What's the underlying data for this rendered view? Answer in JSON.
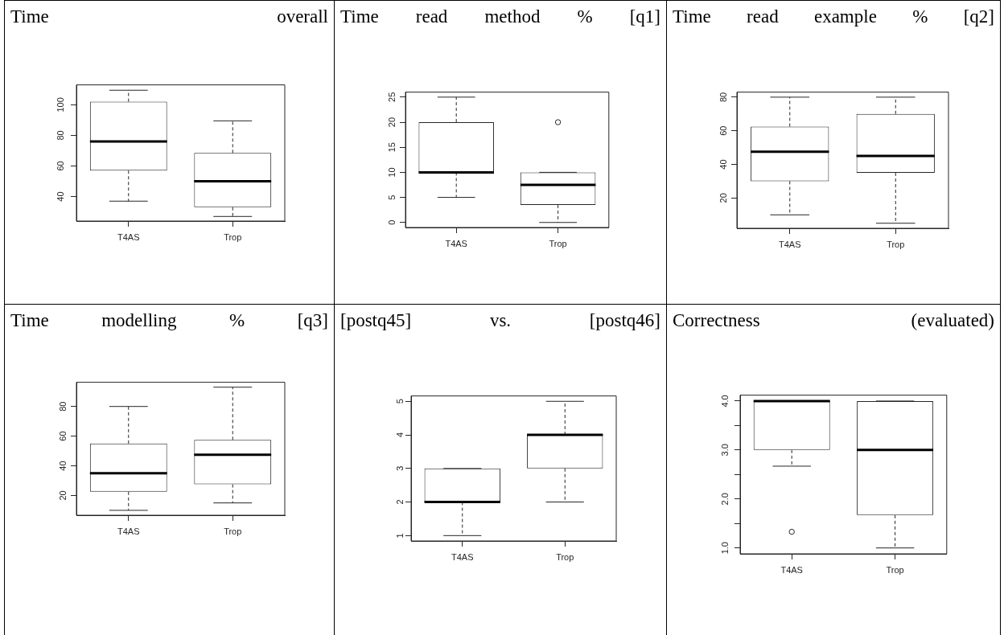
{
  "chart_data": [
    {
      "type": "box",
      "title": "Time overall",
      "categories": [
        "T4AS",
        "Trop"
      ],
      "boxes": [
        {
          "low": 37,
          "q1": 57,
          "median": 76,
          "q3": 102,
          "high": 109.5
        },
        {
          "low": 27,
          "q1": 33,
          "median": 50,
          "q3": 68.5,
          "high": 89.5
        }
      ],
      "ylim": [
        24,
        113
      ],
      "yticks": [
        40,
        60,
        80,
        100
      ]
    },
    {
      "type": "box",
      "title": "Time read method % [q1]",
      "categories": [
        "T4AS",
        "Trop"
      ],
      "boxes": [
        {
          "low": 5,
          "q1": 10,
          "median": 10,
          "q3": 20,
          "high": 25
        },
        {
          "low": 0,
          "q1": 3.5,
          "median": 7.5,
          "q3": 10,
          "high": 10,
          "outliers": [
            20
          ]
        }
      ],
      "ylim": [
        -1,
        26
      ],
      "yticks": [
        0,
        5,
        10,
        15,
        20,
        25
      ]
    },
    {
      "type": "box",
      "title": "Time read example % [q2]",
      "categories": [
        "T4AS",
        "Trop"
      ],
      "boxes": [
        {
          "low": 10,
          "q1": 30,
          "median": 47.5,
          "q3": 62.5,
          "high": 80
        },
        {
          "low": 5,
          "q1": 35,
          "median": 45,
          "q3": 70,
          "high": 80
        }
      ],
      "ylim": [
        2,
        83
      ],
      "yticks": [
        20,
        40,
        60,
        80
      ]
    },
    {
      "type": "box",
      "title": "Time modelling % [q3]",
      "categories": [
        "T4AS",
        "Trop"
      ],
      "boxes": [
        {
          "low": 10,
          "q1": 22.5,
          "median": 35,
          "q3": 55,
          "high": 80
        },
        {
          "low": 15,
          "q1": 27.5,
          "median": 47.5,
          "q3": 57.5,
          "high": 93
        }
      ],
      "ylim": [
        6.7,
        96.3
      ],
      "yticks": [
        20,
        40,
        60,
        80
      ]
    },
    {
      "type": "box",
      "title": "[postq45] vs. [postq46]",
      "categories": [
        "T4AS",
        "Trop"
      ],
      "boxes": [
        {
          "low": 1,
          "q1": 2,
          "median": 2,
          "q3": 3,
          "high": 3
        },
        {
          "low": 2,
          "q1": 3,
          "median": 4,
          "q3": 4,
          "high": 5
        }
      ],
      "ylim": [
        0.84,
        5.16
      ],
      "yticks": [
        1,
        2,
        3,
        4,
        5
      ]
    },
    {
      "type": "box",
      "title": "Correctness (evaluated)",
      "categories": [
        "T4AS",
        "Trop"
      ],
      "boxes": [
        {
          "low": 2.67,
          "q1": 3,
          "median": 4,
          "q3": 4,
          "high": 4,
          "outliers": [
            1.33
          ]
        },
        {
          "low": 1,
          "q1": 1.67,
          "median": 3,
          "q3": 4,
          "high": 4
        }
      ],
      "ylim": [
        0.88,
        4.12
      ],
      "yticks": [
        {
          "value": 1,
          "label": "1.0"
        },
        {
          "value": 1.5,
          "label": null
        },
        {
          "value": 2,
          "label": "2.0"
        },
        {
          "value": 2.5,
          "label": null
        },
        {
          "value": 3,
          "label": "3.0"
        },
        {
          "value": 3.5,
          "label": null
        },
        {
          "value": 4,
          "label": "4.0"
        }
      ]
    }
  ]
}
